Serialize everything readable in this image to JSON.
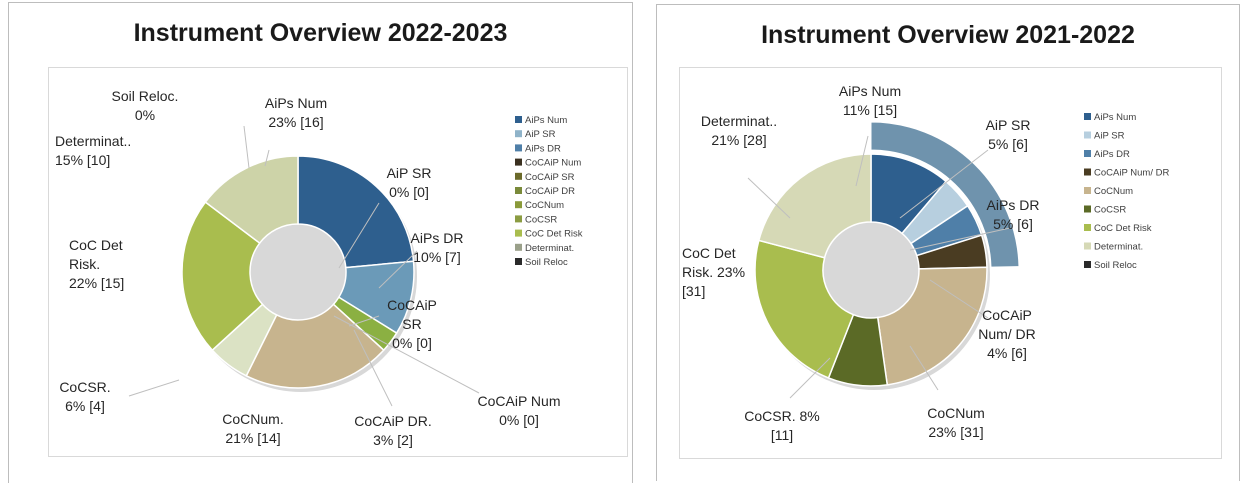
{
  "charts": [
    {
      "type": "doughnut",
      "title": "Instrument Overview 2022-2023",
      "legend": [
        "AiPs Num",
        "AiP SR",
        "AiPs DR",
        "CoCAiP Num",
        "CoCAiP SR",
        "CoCAiP DR",
        "CoCNum",
        "CoCSR",
        "CoC Det Risk",
        "Determinat.",
        "Soil Reloc"
      ],
      "slices": [
        {
          "label": [
            "AiPs Num",
            "23% [16]"
          ],
          "value": 16,
          "color": "#2e5f8e"
        },
        {
          "label": [
            "AiP SR",
            "0% [0]"
          ],
          "value": 0,
          "color": "#8fb3c9"
        },
        {
          "label": [
            "AiPs DR",
            "10% [7]"
          ],
          "value": 7,
          "color": "#6b9ab8"
        },
        {
          "label": [
            "CoCAiP Num",
            "0% [0]"
          ],
          "value": 0,
          "color": "#3e3322"
        },
        {
          "label": [
            "CoCAiP",
            "SR",
            "0% [0]"
          ],
          "value": 0,
          "color": "#6b5a3a"
        },
        {
          "label": [
            "CoCAiP DR.",
            "3% [2]"
          ],
          "value": 2,
          "color": "#8bb042"
        },
        {
          "label": [
            "CoCNum.",
            "21% [14]"
          ],
          "value": 14,
          "color": "#c7b48e"
        },
        {
          "label": [
            "CoCSR.",
            "6% [4]"
          ],
          "value": 4,
          "color": "#dbe2c4"
        },
        {
          "label": [
            "CoC Det",
            "Risk.",
            "22% [15]"
          ],
          "value": 15,
          "color": "#a9bd4e"
        },
        {
          "label": [
            "Determinat..",
            "15% [10]"
          ],
          "value": 10,
          "color": "#cdd3a8"
        },
        {
          "label": [
            "Soil Reloc.",
            "0%"
          ],
          "value": 0,
          "color": "#2a2a2a"
        }
      ],
      "legend_colors": [
        "#2e5f8e",
        "#8fb3c9",
        "#4f7fa8",
        "#3a3020",
        "#6b6a2a",
        "#7a8a3a",
        "#8a9a3a",
        "#8b9c42",
        "#a9bd4e",
        "#9aa08a",
        "#2a2a2a"
      ]
    },
    {
      "type": "doughnut",
      "title": "Instrument Overview 2021-2022",
      "legend": [
        "AiPs Num",
        "AiP SR",
        "AiPs DR",
        "CoCAiP Num/ DR",
        "CoCNum",
        "CoCSR",
        "CoC Det Risk",
        "Determinat.",
        "Soil Reloc"
      ],
      "slices": [
        {
          "label": [
            "AiPs Num",
            "11% [15]"
          ],
          "value": 15,
          "color": "#2e5f8e"
        },
        {
          "label": [
            "AiP SR",
            "5% [6]"
          ],
          "value": 6,
          "color": "#b7cfdf"
        },
        {
          "label": [
            "AiPs DR",
            "5% [6]"
          ],
          "value": 6,
          "color": "#4f7fa8"
        },
        {
          "label": [
            "CoCAiP",
            "Num/ DR",
            "4% [6]"
          ],
          "value": 6,
          "color": "#4a3c22"
        },
        {
          "label": [
            "CoCNum",
            "23% [31]"
          ],
          "value": 31,
          "color": "#c7b48e"
        },
        {
          "label": [
            "CoCSR. 8%",
            "[11]"
          ],
          "value": 11,
          "color": "#5b6a26"
        },
        {
          "label": [
            "CoC Det",
            "Risk. 23%",
            "[31]"
          ],
          "value": 31,
          "color": "#a9bd4e"
        },
        {
          "label": [
            "Determinat..",
            "21% [28]"
          ],
          "value": 28,
          "color": "#d6d9b6"
        }
      ],
      "legend_colors": [
        "#2e5f8e",
        "#b7cfdf",
        "#4f7fa8",
        "#4a3c22",
        "#c7b48e",
        "#5b6a26",
        "#a9bd4e",
        "#d6d9b6",
        "#2a2a2a"
      ]
    }
  ],
  "chart_data": [
    {
      "type": "pie",
      "title": "Instrument Overview 2022-2023",
      "categories": [
        "AiPs Num",
        "AiP SR",
        "AiPs DR",
        "CoCAiP Num",
        "CoCAiP SR",
        "CoCAiP DR",
        "CoCNum",
        "CoCSR",
        "CoC Det Risk",
        "Determinat.",
        "Soil Reloc"
      ],
      "values": [
        16,
        0,
        7,
        0,
        0,
        2,
        14,
        4,
        15,
        10,
        0
      ],
      "percentages": [
        23,
        0,
        10,
        0,
        0,
        3,
        21,
        6,
        22,
        15,
        0
      ],
      "legend_position": "right"
    },
    {
      "type": "pie",
      "title": "Instrument Overview 2021-2022",
      "categories": [
        "AiPs Num",
        "AiP SR",
        "AiPs DR",
        "CoCAiP Num/ DR",
        "CoCNum",
        "CoCSR",
        "CoC Det Risk",
        "Determinat.",
        "Soil Reloc"
      ],
      "values": [
        15,
        6,
        6,
        6,
        31,
        11,
        31,
        28,
        0
      ],
      "percentages": [
        11,
        5,
        5,
        4,
        23,
        8,
        23,
        21,
        0
      ],
      "legend_position": "right"
    }
  ]
}
